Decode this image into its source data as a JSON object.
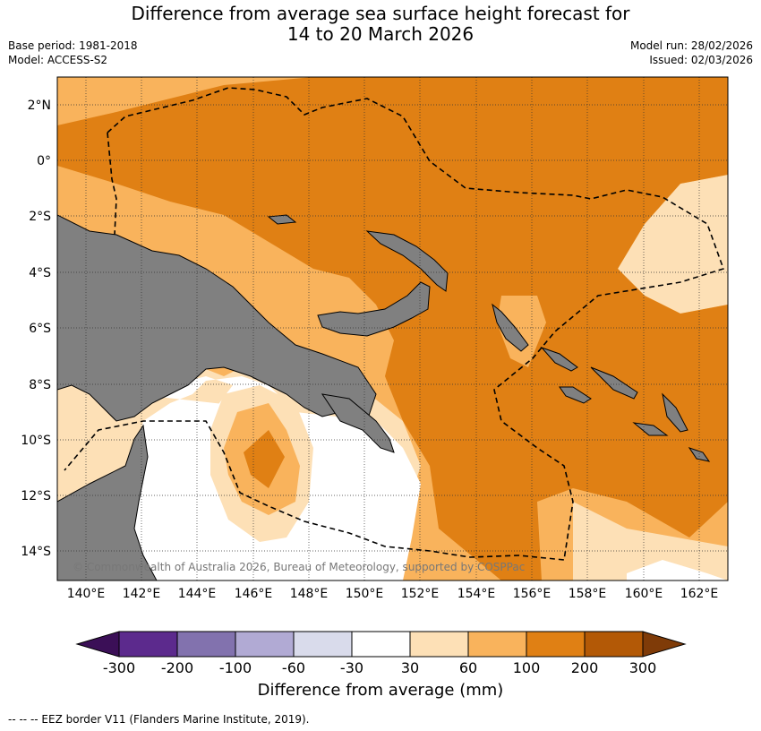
{
  "header": {
    "title_line1": "Difference from average sea surface height forecast for",
    "title_line2": "14 to 20 March 2026",
    "base_period": "Base period: 1981-2018",
    "model": "Model: ACCESS-S2",
    "model_run": "Model run: 28/02/2026",
    "issued": "Issued: 02/03/2026"
  },
  "map": {
    "lat_labels": [
      "2°N",
      "0°",
      "2°S",
      "4°S",
      "6°S",
      "8°S",
      "10°S",
      "12°S",
      "14°S"
    ],
    "lon_labels": [
      "140°E",
      "142°E",
      "144°E",
      "146°E",
      "148°E",
      "150°E",
      "152°E",
      "154°E",
      "156°E",
      "158°E",
      "160°E",
      "162°E"
    ],
    "copyright": "© Commonwealth of Australia 2026, Bureau of Meteorology, supported by COSPPac",
    "land_color": "#808080",
    "colors": {
      "lt30": "#ffffff",
      "c30_60": "#fde0b6",
      "c60_100": "#f9b35c",
      "c100_200": "#e08014",
      "c200_300": "#b35906"
    }
  },
  "colorbar": {
    "ticks": [
      "-300",
      "-200",
      "-100",
      "-60",
      "-30",
      "30",
      "60",
      "100",
      "200",
      "300"
    ],
    "colors": [
      "#3b0f57",
      "#5c2a8d",
      "#8272ae",
      "#b1aad4",
      "#d9dbeb",
      "#ffffff",
      "#fde0b6",
      "#f9b35c",
      "#e08014",
      "#b35906",
      "#7f3b08"
    ],
    "label": "Difference from average (mm)"
  },
  "footer": {
    "text": "-- -- -- EEZ border V11 (Flanders Marine Institute, 2019)."
  }
}
